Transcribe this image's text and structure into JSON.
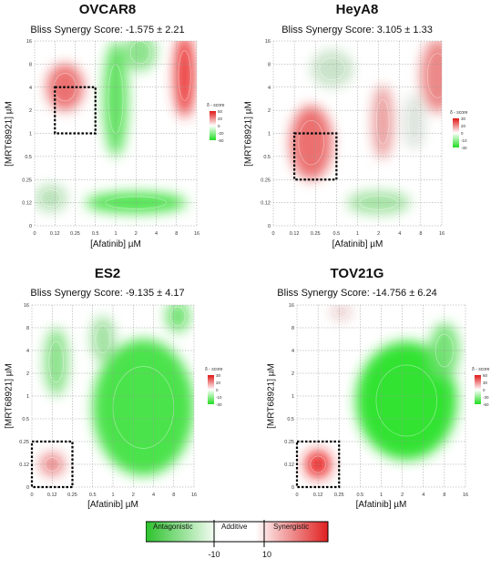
{
  "chart_data": [
    {
      "type": "heatmap",
      "title": "OVCAR8",
      "subtitle": "Bliss Synergy Score: -1.575 ± 2.21",
      "xlabel": "[Afatinib] µM",
      "ylabel": "[MRT68921] µM",
      "x_ticks": [
        "0",
        "0.12",
        "0.25",
        "0.5",
        "1",
        "2",
        "4",
        "8",
        "16"
      ],
      "y_ticks": [
        "0",
        "0.12",
        "0.25",
        "0.5",
        "1",
        "2",
        "4",
        "8",
        "16"
      ],
      "legend_title": "δ - score",
      "legend_ticks": [
        "50",
        "20",
        "0",
        "-20",
        "-50"
      ],
      "highlight_box": {
        "x_from": "0.12",
        "x_to": "0.5",
        "y_from": "1",
        "y_to": "4"
      },
      "blobs": [
        {
          "x": 1.5,
          "y": 6.0,
          "sx": 0.9,
          "sy": 1.0,
          "value": 30
        },
        {
          "x": 7.4,
          "y": 6.5,
          "sx": 0.5,
          "sy": 1.8,
          "value": 40
        },
        {
          "x": 5.0,
          "y": 1.0,
          "sx": 2.5,
          "sy": 0.45,
          "value": -40
        },
        {
          "x": 4.0,
          "y": 5.5,
          "sx": 0.6,
          "sy": 2.5,
          "value": -35
        },
        {
          "x": 5.2,
          "y": 7.5,
          "sx": 0.8,
          "sy": 0.8,
          "value": -25
        },
        {
          "x": 0.8,
          "y": 1.2,
          "sx": 0.8,
          "sy": 0.6,
          "value": -15
        }
      ]
    },
    {
      "type": "heatmap",
      "title": "HeyA8",
      "subtitle": "Bliss Synergy Score: 3.105 ± 1.33",
      "xlabel": "[Afatinib] µM",
      "ylabel": "[MRT68921] µM",
      "x_ticks": [
        "0",
        "0.12",
        "0.25",
        "0.5",
        "1",
        "2",
        "4",
        "8",
        "16"
      ],
      "y_ticks": [
        "0",
        "0.12",
        "0.25",
        "0.5",
        "1",
        "2",
        "4",
        "8",
        "16"
      ],
      "legend_title": "δ - score",
      "legend_ticks": [
        "30",
        "20",
        "0",
        "-10",
        "-30"
      ],
      "highlight_box": {
        "x_from": "0.12",
        "x_to": "0.5",
        "y_from": "0.25",
        "y_to": "1"
      },
      "blobs": [
        {
          "x": 1.8,
          "y": 3.6,
          "sx": 1.0,
          "sy": 1.6,
          "value": 30
        },
        {
          "x": 5.2,
          "y": 4.5,
          "sx": 0.5,
          "sy": 1.6,
          "value": 20
        },
        {
          "x": 7.8,
          "y": 6.5,
          "sx": 0.8,
          "sy": 1.6,
          "value": 25
        },
        {
          "x": 5.0,
          "y": 1.0,
          "sx": 1.5,
          "sy": 0.5,
          "value": -20
        },
        {
          "x": 2.8,
          "y": 6.8,
          "sx": 1.0,
          "sy": 0.8,
          "value": -12
        },
        {
          "x": 6.7,
          "y": 4.5,
          "sx": 0.5,
          "sy": 1.2,
          "value": -8
        }
      ]
    },
    {
      "type": "heatmap",
      "title": "ES2",
      "subtitle": "Bliss Synergy Score: -9.135 ± 4.17",
      "xlabel": "[Afatinib] µM",
      "ylabel": "[MRT68921] µM",
      "x_ticks": [
        "0",
        "0.12",
        "0.25",
        "0.5",
        "1",
        "2",
        "4",
        "8",
        "16"
      ],
      "y_ticks": [
        "0",
        "0.12",
        "0.25",
        "0.5",
        "1",
        "2",
        "4",
        "8",
        "16"
      ],
      "legend_title": "δ - score",
      "legend_ticks": [
        "30",
        "20",
        "0",
        "-10",
        "-30"
      ],
      "highlight_box": {
        "x_from": "0",
        "x_to": "0.25",
        "y_from": "0",
        "y_to": "0.25"
      },
      "blobs": [
        {
          "x": 1.0,
          "y": 1.0,
          "sx": 0.6,
          "sy": 0.5,
          "value": 25
        },
        {
          "x": 5.5,
          "y": 3.5,
          "sx": 2.5,
          "sy": 3.0,
          "value": -40
        },
        {
          "x": 1.2,
          "y": 5.5,
          "sx": 0.6,
          "sy": 1.5,
          "value": -25
        },
        {
          "x": 7.2,
          "y": 7.5,
          "sx": 0.6,
          "sy": 0.7,
          "value": -30
        },
        {
          "x": 3.5,
          "y": 6.5,
          "sx": 0.6,
          "sy": 1.0,
          "value": -20
        }
      ]
    },
    {
      "type": "heatmap",
      "title": "TOV21G",
      "subtitle": "Bliss Synergy Score: -14.756 ± 6.24",
      "xlabel": "[Afatinib] µM",
      "ylabel": "[MRT68921] µM",
      "x_ticks": [
        "0",
        "0.12",
        "0.25",
        "0.5",
        "1",
        "2",
        "4",
        "8",
        "16"
      ],
      "y_ticks": [
        "0",
        "0.12",
        "0.25",
        "0.5",
        "1",
        "2",
        "4",
        "8",
        "16"
      ],
      "legend_title": "δ - score",
      "legend_ticks": [
        "60",
        "30",
        "0",
        "-30",
        "-60"
      ],
      "highlight_box": {
        "x_from": "0",
        "x_to": "0.25",
        "y_from": "0",
        "y_to": "0.25"
      },
      "blobs": [
        {
          "x": 1.0,
          "y": 1.0,
          "sx": 0.6,
          "sy": 0.6,
          "value": 45
        },
        {
          "x": 2.1,
          "y": 7.7,
          "sx": 0.5,
          "sy": 0.4,
          "value": 10
        },
        {
          "x": 5.2,
          "y": 3.8,
          "sx": 2.4,
          "sy": 2.6,
          "value": -45
        },
        {
          "x": 7.0,
          "y": 6.0,
          "sx": 0.7,
          "sy": 1.2,
          "value": -30
        }
      ]
    }
  ],
  "bottom_legend": {
    "labels": [
      "Antagonistic",
      "Additive",
      "Synergistic"
    ],
    "ticks": [
      "-10",
      "10"
    ],
    "colors": {
      "antagonistic": "#2bc22b",
      "additive": "#ffffff",
      "synergistic": "#e02020"
    }
  }
}
